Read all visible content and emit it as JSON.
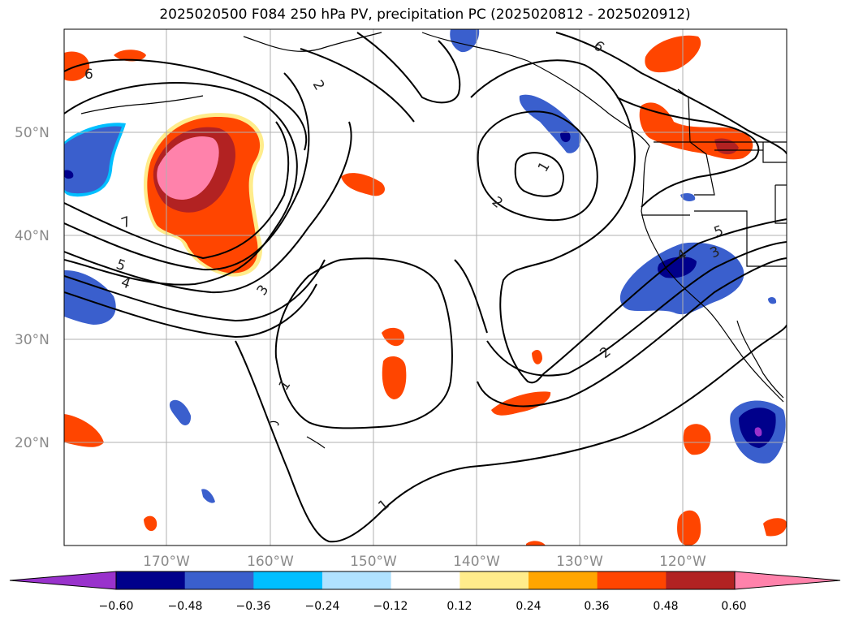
{
  "title": "2025020500 F084 250 hPa PV, precipitation PC (2025020812 - 2025020912)",
  "map": {
    "lat_labels": [
      "50°N",
      "40°N",
      "30°N",
      "20°N"
    ],
    "lon_labels": [
      "170°W",
      "160°W",
      "150°W",
      "140°W",
      "130°W",
      "120°W"
    ],
    "contour_labels": [
      "6",
      "2",
      "6",
      "1",
      "2",
      "7",
      "5",
      "4",
      "3",
      "5",
      "4",
      "3",
      "1",
      "2",
      "1"
    ]
  },
  "colorbar": {
    "ticks": [
      "−0.60",
      "−0.48",
      "−0.36",
      "−0.24",
      "−0.12",
      "0.12",
      "0.24",
      "0.36",
      "0.48",
      "0.60"
    ],
    "colors": [
      "#9932cc",
      "#00008b",
      "#3a5fcd",
      "#00bfff",
      "#b0e2ff",
      "#ffffff",
      "#ffec8b",
      "#ffa500",
      "#ff4500",
      "#b22222",
      "#ff82ab"
    ]
  }
}
